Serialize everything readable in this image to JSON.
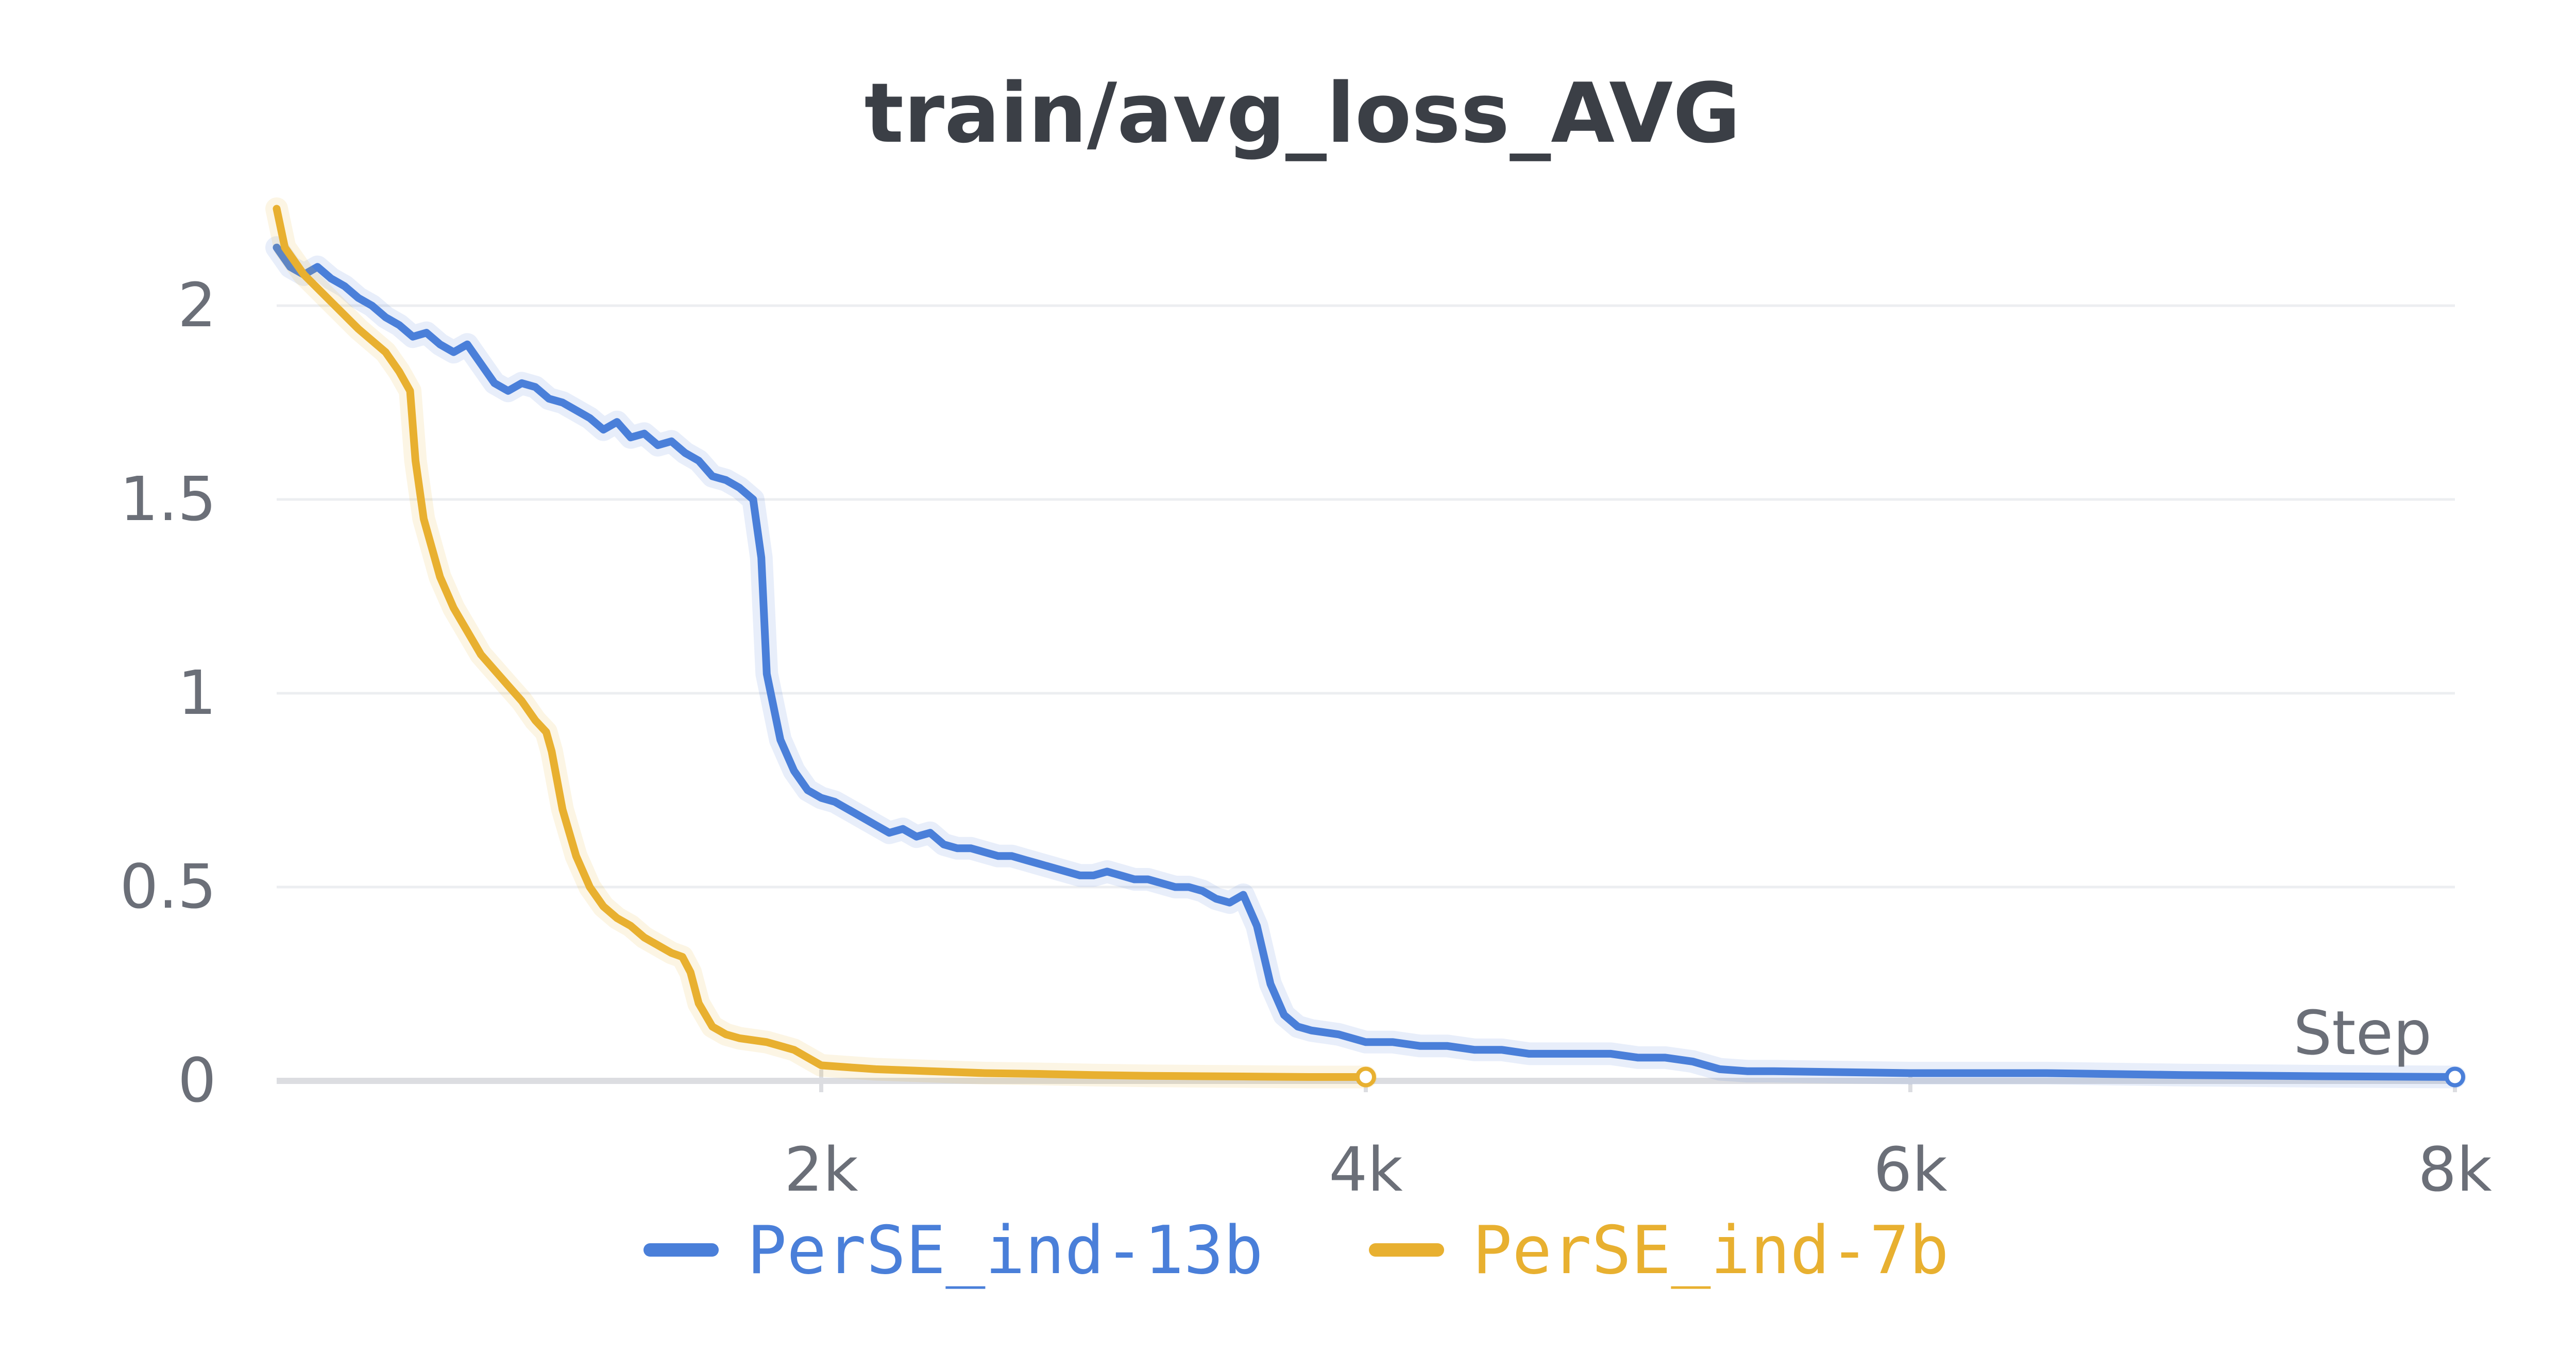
{
  "chart_data": {
    "type": "line",
    "title": "train/avg_loss_AVG",
    "xlabel": "Step",
    "ylabel": "",
    "xlim": [
      0,
      8000
    ],
    "ylim": [
      0,
      2.25
    ],
    "x_ticks": [
      {
        "value": 2000,
        "label": "2k"
      },
      {
        "value": 4000,
        "label": "4k"
      },
      {
        "value": 6000,
        "label": "6k"
      },
      {
        "value": 8000,
        "label": "8k"
      }
    ],
    "y_ticks": [
      {
        "value": 0,
        "label": "0"
      },
      {
        "value": 0.5,
        "label": "0.5"
      },
      {
        "value": 1,
        "label": "1"
      },
      {
        "value": 1.5,
        "label": "1.5"
      },
      {
        "value": 2,
        "label": "2"
      }
    ],
    "grid": true,
    "legend_position": "bottom",
    "series": [
      {
        "name": "PerSE_ind-13b",
        "color": "#4a7fd9",
        "points": [
          [
            0,
            2.15
          ],
          [
            50,
            2.1
          ],
          [
            100,
            2.08
          ],
          [
            150,
            2.1
          ],
          [
            200,
            2.07
          ],
          [
            250,
            2.05
          ],
          [
            300,
            2.02
          ],
          [
            350,
            2.0
          ],
          [
            400,
            1.97
          ],
          [
            450,
            1.95
          ],
          [
            500,
            1.92
          ],
          [
            550,
            1.93
          ],
          [
            600,
            1.9
          ],
          [
            650,
            1.88
          ],
          [
            700,
            1.9
          ],
          [
            750,
            1.85
          ],
          [
            800,
            1.8
          ],
          [
            850,
            1.78
          ],
          [
            900,
            1.8
          ],
          [
            950,
            1.79
          ],
          [
            1000,
            1.76
          ],
          [
            1050,
            1.75
          ],
          [
            1100,
            1.73
          ],
          [
            1150,
            1.71
          ],
          [
            1200,
            1.68
          ],
          [
            1250,
            1.7
          ],
          [
            1300,
            1.66
          ],
          [
            1350,
            1.67
          ],
          [
            1400,
            1.64
          ],
          [
            1450,
            1.65
          ],
          [
            1500,
            1.62
          ],
          [
            1550,
            1.6
          ],
          [
            1600,
            1.56
          ],
          [
            1650,
            1.55
          ],
          [
            1700,
            1.53
          ],
          [
            1750,
            1.5
          ],
          [
            1780,
            1.35
          ],
          [
            1800,
            1.05
          ],
          [
            1850,
            0.88
          ],
          [
            1900,
            0.8
          ],
          [
            1950,
            0.75
          ],
          [
            2000,
            0.73
          ],
          [
            2050,
            0.72
          ],
          [
            2100,
            0.7
          ],
          [
            2150,
            0.68
          ],
          [
            2200,
            0.66
          ],
          [
            2250,
            0.64
          ],
          [
            2300,
            0.65
          ],
          [
            2350,
            0.63
          ],
          [
            2400,
            0.64
          ],
          [
            2450,
            0.61
          ],
          [
            2500,
            0.6
          ],
          [
            2550,
            0.6
          ],
          [
            2600,
            0.59
          ],
          [
            2650,
            0.58
          ],
          [
            2700,
            0.58
          ],
          [
            2750,
            0.57
          ],
          [
            2800,
            0.56
          ],
          [
            2850,
            0.55
          ],
          [
            2900,
            0.54
          ],
          [
            2950,
            0.53
          ],
          [
            3000,
            0.53
          ],
          [
            3050,
            0.54
          ],
          [
            3100,
            0.53
          ],
          [
            3150,
            0.52
          ],
          [
            3200,
            0.52
          ],
          [
            3250,
            0.51
          ],
          [
            3300,
            0.5
          ],
          [
            3350,
            0.5
          ],
          [
            3400,
            0.49
          ],
          [
            3450,
            0.47
          ],
          [
            3500,
            0.46
          ],
          [
            3550,
            0.48
          ],
          [
            3600,
            0.4
          ],
          [
            3650,
            0.25
          ],
          [
            3700,
            0.17
          ],
          [
            3750,
            0.14
          ],
          [
            3800,
            0.13
          ],
          [
            3900,
            0.12
          ],
          [
            4000,
            0.1
          ],
          [
            4100,
            0.1
          ],
          [
            4200,
            0.09
          ],
          [
            4300,
            0.09
          ],
          [
            4400,
            0.08
          ],
          [
            4500,
            0.08
          ],
          [
            4600,
            0.07
          ],
          [
            4700,
            0.07
          ],
          [
            4800,
            0.07
          ],
          [
            4900,
            0.07
          ],
          [
            5000,
            0.06
          ],
          [
            5100,
            0.06
          ],
          [
            5200,
            0.05
          ],
          [
            5300,
            0.03
          ],
          [
            5400,
            0.025
          ],
          [
            5500,
            0.025
          ],
          [
            6000,
            0.02
          ],
          [
            6500,
            0.02
          ],
          [
            7000,
            0.015
          ],
          [
            7500,
            0.012
          ],
          [
            8000,
            0.01
          ]
        ]
      },
      {
        "name": "PerSE_ind-7b",
        "color": "#e8b030",
        "points": [
          [
            0,
            2.25
          ],
          [
            30,
            2.15
          ],
          [
            100,
            2.08
          ],
          [
            200,
            2.01
          ],
          [
            300,
            1.94
          ],
          [
            400,
            1.88
          ],
          [
            450,
            1.83
          ],
          [
            490,
            1.78
          ],
          [
            510,
            1.6
          ],
          [
            540,
            1.45
          ],
          [
            600,
            1.3
          ],
          [
            650,
            1.22
          ],
          [
            700,
            1.16
          ],
          [
            750,
            1.1
          ],
          [
            800,
            1.06
          ],
          [
            850,
            1.02
          ],
          [
            900,
            0.98
          ],
          [
            950,
            0.93
          ],
          [
            990,
            0.9
          ],
          [
            1010,
            0.85
          ],
          [
            1050,
            0.7
          ],
          [
            1100,
            0.58
          ],
          [
            1150,
            0.5
          ],
          [
            1200,
            0.45
          ],
          [
            1250,
            0.42
          ],
          [
            1300,
            0.4
          ],
          [
            1350,
            0.37
          ],
          [
            1400,
            0.35
          ],
          [
            1450,
            0.33
          ],
          [
            1490,
            0.32
          ],
          [
            1520,
            0.28
          ],
          [
            1550,
            0.2
          ],
          [
            1600,
            0.14
          ],
          [
            1650,
            0.12
          ],
          [
            1700,
            0.11
          ],
          [
            1800,
            0.1
          ],
          [
            1900,
            0.08
          ],
          [
            1950,
            0.06
          ],
          [
            2000,
            0.04
          ],
          [
            2100,
            0.035
          ],
          [
            2200,
            0.03
          ],
          [
            2400,
            0.025
          ],
          [
            2600,
            0.02
          ],
          [
            2800,
            0.018
          ],
          [
            3000,
            0.015
          ],
          [
            3200,
            0.013
          ],
          [
            3400,
            0.012
          ],
          [
            3600,
            0.011
          ],
          [
            3800,
            0.01
          ],
          [
            4000,
            0.01
          ]
        ]
      }
    ]
  }
}
